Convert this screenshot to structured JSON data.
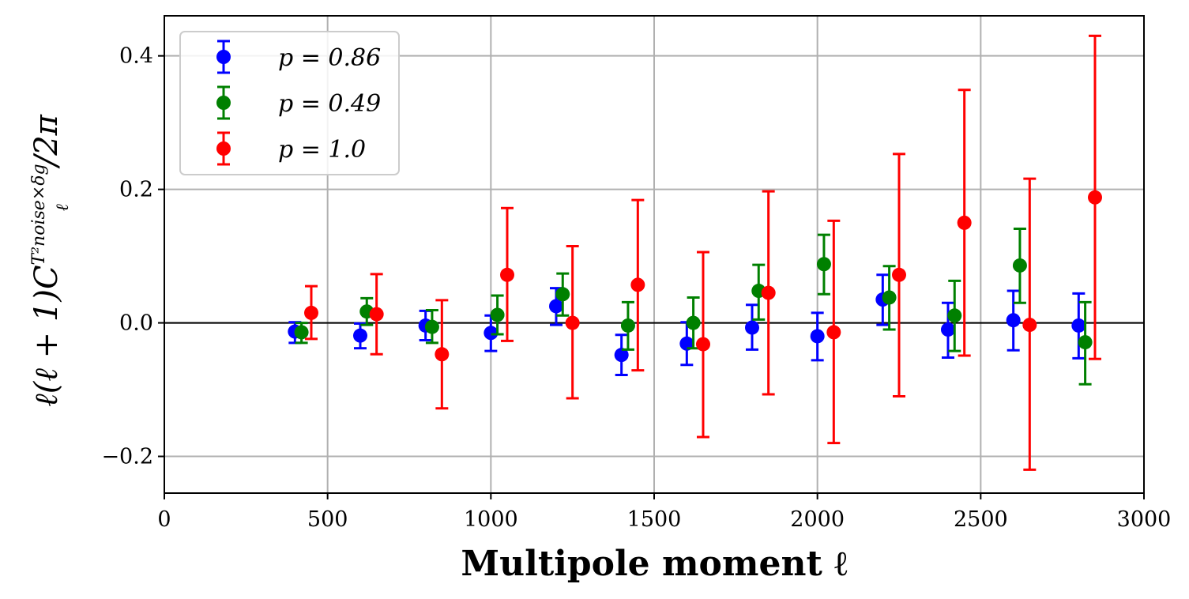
{
  "chart_data": {
    "type": "scatter",
    "xlabel": "Multipole moment ℓ",
    "ylabel": "ℓ(ℓ + 1)C",
    "ylabel_sup": "T²noise×δg",
    "ylabel_sub": "ℓ",
    "ylabel_tail": "/2π",
    "xlim": [
      0,
      3000
    ],
    "ylim": [
      -0.255,
      0.46
    ],
    "xticks": [
      0,
      500,
      1000,
      1500,
      2000,
      2500,
      3000
    ],
    "xtick_labels": [
      "0",
      "500",
      "1000",
      "1500",
      "2000",
      "2500",
      "3000"
    ],
    "yticks": [
      -0.2,
      0.0,
      0.2,
      0.4
    ],
    "ytick_labels": [
      "−0.2",
      "0.0",
      "0.2",
      "0.4"
    ],
    "grid": true,
    "zero_line": 0,
    "legend_position": "top-left",
    "series": [
      {
        "name": "p = 0.86",
        "color": "#0000ff",
        "x": [
          400,
          600,
          800,
          1000,
          1200,
          1400,
          1600,
          1800,
          2000,
          2200,
          2400,
          2600,
          2800
        ],
        "y": [
          -0.013,
          -0.019,
          -0.004,
          -0.015,
          0.025,
          -0.048,
          -0.031,
          -0.007,
          -0.02,
          0.035,
          -0.01,
          0.004,
          -0.004
        ],
        "err_low": [
          -0.03,
          -0.038,
          -0.026,
          -0.042,
          -0.003,
          -0.078,
          -0.063,
          -0.04,
          -0.056,
          -0.003,
          -0.052,
          -0.041,
          -0.053
        ],
        "err_high": [
          0.001,
          -0.001,
          0.018,
          0.011,
          0.052,
          -0.018,
          0.001,
          0.027,
          0.015,
          0.072,
          0.03,
          0.048,
          0.044
        ]
      },
      {
        "name": "p = 0.49",
        "color": "#008000",
        "x": [
          420,
          620,
          820,
          1020,
          1220,
          1420,
          1620,
          1820,
          2020,
          2220,
          2420,
          2620,
          2820
        ],
        "y": [
          -0.014,
          0.017,
          -0.006,
          0.012,
          0.043,
          -0.004,
          0.0,
          0.048,
          0.088,
          0.038,
          0.011,
          0.086,
          -0.029
        ],
        "err_low": [
          -0.03,
          -0.003,
          -0.03,
          -0.017,
          0.011,
          -0.04,
          -0.038,
          0.005,
          0.043,
          -0.01,
          -0.042,
          0.03,
          -0.092
        ],
        "err_high": [
          0.0,
          0.037,
          0.019,
          0.041,
          0.074,
          0.031,
          0.038,
          0.087,
          0.132,
          0.085,
          0.063,
          0.141,
          0.031
        ]
      },
      {
        "name": "p = 1.0",
        "color": "#ff0000",
        "x": [
          450,
          650,
          850,
          1050,
          1250,
          1450,
          1650,
          1850,
          2050,
          2250,
          2450,
          2650,
          2850
        ],
        "y": [
          0.015,
          0.013,
          -0.047,
          0.072,
          0.0,
          0.057,
          -0.032,
          0.045,
          -0.014,
          0.072,
          0.15,
          -0.003,
          0.188
        ],
        "err_low": [
          -0.024,
          -0.047,
          -0.128,
          -0.027,
          -0.113,
          -0.071,
          -0.171,
          -0.107,
          -0.18,
          -0.11,
          -0.049,
          -0.22,
          -0.054
        ],
        "err_high": [
          0.055,
          0.073,
          0.034,
          0.172,
          0.115,
          0.184,
          0.106,
          0.197,
          0.153,
          0.253,
          0.349,
          0.216,
          0.43
        ]
      }
    ]
  }
}
